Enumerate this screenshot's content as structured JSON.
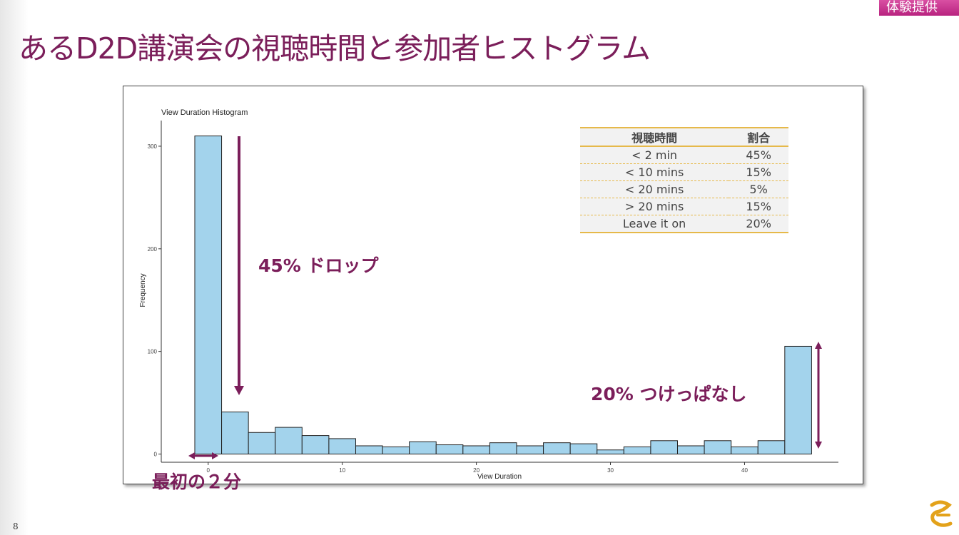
{
  "slide": {
    "title": "あるD2D講演会の視聴時間と参加者ヒストグラム",
    "corner_tag": "体験提供",
    "page_number": "8"
  },
  "annotations": {
    "drop": "45% ドロップ",
    "leave_on": "20% つけっぱなし",
    "first_two_min": "最初の２分"
  },
  "share_table": {
    "headers": [
      "視聴時間",
      "割合"
    ],
    "rows": [
      [
        "< 2 min",
        "45%"
      ],
      [
        "< 10 mins",
        "15%"
      ],
      [
        "< 20 mins",
        "5%"
      ],
      [
        "> 20 mins",
        "15%"
      ],
      [
        "Leave it on",
        "20%"
      ]
    ]
  },
  "colors": {
    "accent": "#7b1e5a",
    "bar_fill": "#a3d3ec",
    "table_rule": "#e6b94a"
  },
  "chart_data": {
    "type": "bar",
    "title": "View Duration Histogram",
    "xlabel": "View Duration",
    "ylabel": "Frequency",
    "bin_width": 2,
    "bin_start": -1,
    "values": [
      310,
      41,
      21,
      26,
      18,
      15,
      8,
      7,
      12,
      9,
      8,
      11,
      8,
      11,
      10,
      4,
      7,
      13,
      8,
      13,
      7,
      13,
      105
    ],
    "xlim": [
      -3.5,
      47
    ],
    "ylim": [
      -8,
      325
    ],
    "xticks": [
      0,
      10,
      20,
      30,
      40
    ],
    "yticks": [
      0,
      100,
      200,
      300
    ],
    "grid": false
  }
}
